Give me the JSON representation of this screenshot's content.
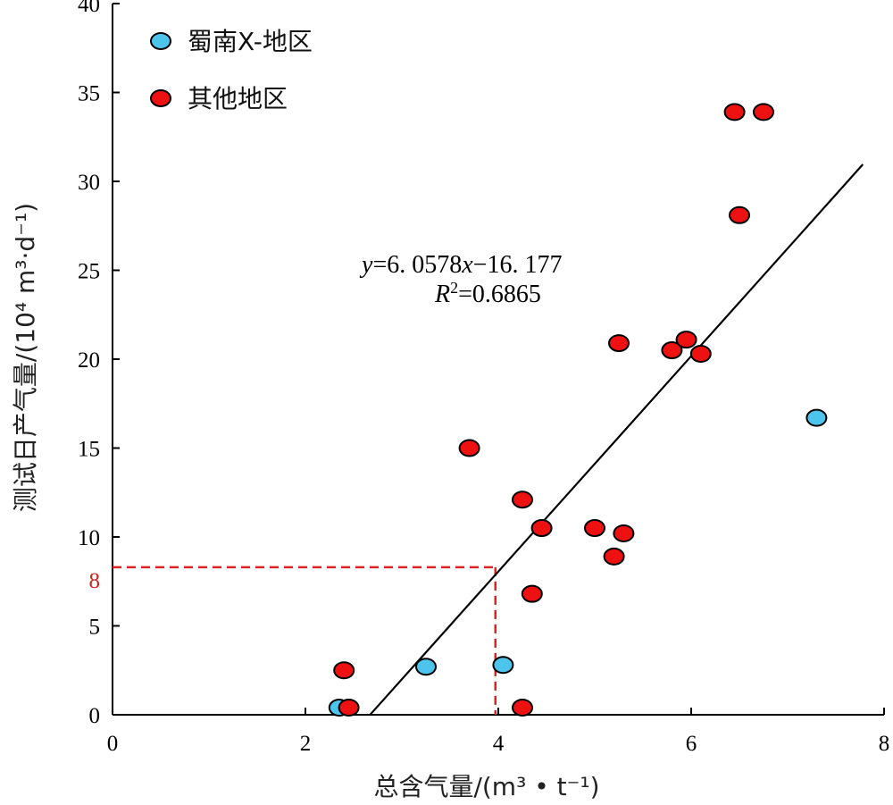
{
  "chart_data": {
    "type": "scatter",
    "xlabel": "总含气量/(m³ • t⁻¹)",
    "ylabel": "测试日产气量/(10⁴ m³·d⁻¹)",
    "xlim": [
      0,
      8
    ],
    "ylim": [
      0,
      40
    ],
    "x_ticks": [
      "0",
      "2",
      "4",
      "6",
      "8"
    ],
    "y_ticks": [
      "0",
      "5",
      "10",
      "15",
      "20",
      "25",
      "30",
      "35",
      "40"
    ],
    "legend_position": "top-left",
    "grid": false,
    "series": [
      {
        "name": "蜀南X-地区",
        "color": "#4cc4ec",
        "points": [
          [
            2.35,
            0.4
          ],
          [
            3.25,
            2.7
          ],
          [
            4.05,
            2.8
          ],
          [
            7.3,
            16.7
          ]
        ]
      },
      {
        "name": "其他地区",
        "color": "#ee1111",
        "points": [
          [
            2.4,
            2.5
          ],
          [
            2.45,
            0.4
          ],
          [
            3.7,
            15.0
          ],
          [
            4.25,
            0.4
          ],
          [
            4.25,
            12.1
          ],
          [
            4.35,
            6.8
          ],
          [
            4.45,
            10.5
          ],
          [
            5.0,
            10.5
          ],
          [
            5.2,
            8.9
          ],
          [
            5.25,
            20.9
          ],
          [
            5.3,
            10.2
          ],
          [
            5.8,
            20.5
          ],
          [
            5.95,
            21.1
          ],
          [
            6.1,
            20.3
          ],
          [
            6.45,
            33.9
          ],
          [
            6.5,
            28.1
          ],
          [
            6.75,
            33.9
          ]
        ]
      }
    ],
    "fit": {
      "equation": "y=6. 0578x−16. 177",
      "r2": "R²=0.6865",
      "slope": 6.0578,
      "intercept": -16.177,
      "x_range": [
        2.67,
        7.78
      ]
    },
    "reference": {
      "x": 3.97,
      "y": 8.3,
      "label": "8",
      "color": "#dd2222"
    }
  }
}
